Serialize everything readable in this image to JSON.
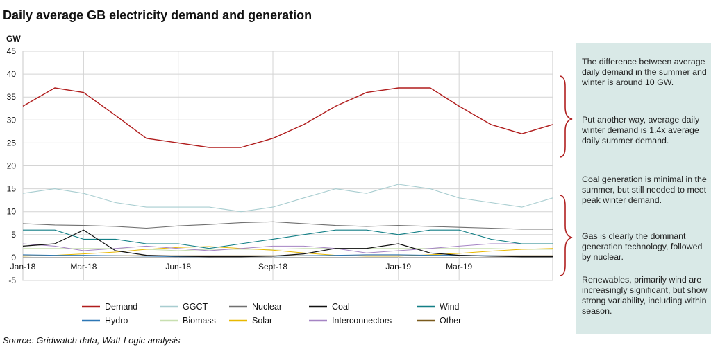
{
  "title": "Daily average GB electricity demand and generation",
  "source": "Source: Gridwatch data, Watt-Logic analysis",
  "annotations": [
    "The difference between average daily demand in the summer and winter is around 10 GW.",
    "Put another way, average daily winter demand is 1.4x average daily summer demand.",
    "Coal generation is minimal in the summer, but still needed to meet peak winter demand.",
    "Gas is clearly the dominant generation technology, followed by nuclear.",
    "Renewables, primarily wind are increasingly significant, but show strong variability, including within season."
  ],
  "colors": {
    "panel": "#d9e9e7",
    "bracket": "#b02020"
  },
  "chart_data": {
    "type": "line",
    "title": "Daily average GB electricity demand and generation",
    "ylabel": "GW",
    "ylim": [
      -5,
      45
    ],
    "yticks": [
      -5,
      0,
      5,
      10,
      15,
      20,
      25,
      30,
      35,
      40,
      45
    ],
    "xlim": [
      "2018-01-01",
      "2019-05-31"
    ],
    "xticks": [
      {
        "label": "Jan-18",
        "date": "2018-01-01"
      },
      {
        "label": "Mar-18",
        "date": "2018-03-01"
      },
      {
        "label": "Jun-18",
        "date": "2018-06-01"
      },
      {
        "label": "Sept-18",
        "date": "2018-09-01"
      },
      {
        "label": "Jan-19",
        "date": "2019-01-01"
      },
      {
        "label": "Mar-19",
        "date": "2019-03-01"
      }
    ],
    "grid": true,
    "legend_position": "bottom",
    "x": [
      "2018-01-01",
      "2018-02-01",
      "2018-03-01",
      "2018-04-01",
      "2018-05-01",
      "2018-06-01",
      "2018-07-01",
      "2018-08-01",
      "2018-09-01",
      "2018-10-01",
      "2018-11-01",
      "2018-12-01",
      "2019-01-01",
      "2019-02-01",
      "2019-03-01",
      "2019-04-01",
      "2019-05-01",
      "2019-05-31"
    ],
    "series": [
      {
        "name": "Demand",
        "color": "#b01c1c",
        "width": 1.4,
        "values": [
          33,
          37,
          36,
          31,
          26,
          25,
          24,
          24,
          26,
          29,
          33,
          36,
          37,
          37,
          33,
          29,
          27,
          29
        ]
      },
      {
        "name": "GGCT",
        "color": "#a8cdd0",
        "width": 1.1,
        "values": [
          14,
          15,
          14,
          12,
          11,
          11,
          11,
          10,
          11,
          13,
          15,
          14,
          16,
          15,
          13,
          12,
          11,
          13
        ]
      },
      {
        "name": "Nuclear",
        "color": "#707070",
        "width": 1.1,
        "values": [
          7.4,
          7.1,
          7.0,
          6.8,
          6.4,
          6.9,
          7.2,
          7.6,
          7.8,
          7.4,
          7.0,
          6.8,
          7.0,
          6.8,
          6.6,
          6.4,
          6.2,
          6.2
        ]
      },
      {
        "name": "Coal",
        "color": "#111111",
        "width": 1.2,
        "values": [
          2.5,
          3.0,
          6.0,
          1.5,
          0.5,
          0.3,
          0.2,
          0.2,
          0.3,
          0.8,
          2.0,
          2.0,
          3.0,
          1.0,
          0.5,
          0.3,
          0.2,
          0.2
        ]
      },
      {
        "name": "Wind",
        "color": "#137f86",
        "width": 1.1,
        "values": [
          6,
          6,
          4,
          4,
          3,
          3,
          2,
          3,
          4,
          5,
          6,
          6,
          5,
          6,
          6,
          4,
          3,
          3
        ]
      },
      {
        "name": "Hydro",
        "color": "#2d77b5",
        "width": 1.0,
        "values": [
          0.6,
          0.5,
          0.5,
          0.4,
          0.3,
          0.2,
          0.2,
          0.3,
          0.3,
          0.4,
          0.5,
          0.6,
          0.6,
          0.5,
          0.5,
          0.4,
          0.3,
          0.3
        ]
      },
      {
        "name": "Biomass",
        "color": "#c8dfb0",
        "width": 1.0,
        "values": [
          2.0,
          2.0,
          2.0,
          2.0,
          1.8,
          1.5,
          1.8,
          1.8,
          1.8,
          2.0,
          2.0,
          2.0,
          2.0,
          2.0,
          2.0,
          2.0,
          1.8,
          1.8
        ]
      },
      {
        "name": "Solar",
        "color": "#e8b800",
        "width": 1.0,
        "values": [
          0.3,
          0.5,
          0.8,
          1.2,
          1.8,
          2.2,
          2.4,
          2.0,
          1.6,
          1.0,
          0.5,
          0.3,
          0.3,
          0.6,
          0.9,
          1.4,
          1.8,
          2.0
        ]
      },
      {
        "name": "Interconnectors",
        "color": "#a584c4",
        "width": 1.0,
        "values": [
          3.0,
          2.5,
          1.5,
          2.0,
          2.5,
          2.0,
          1.5,
          2.0,
          2.5,
          2.5,
          2.0,
          1.0,
          1.5,
          2.0,
          2.5,
          3.0,
          3.0,
          3.0
        ]
      },
      {
        "name": "Other",
        "color": "#7a5a1c",
        "width": 1.0,
        "values": [
          0.4,
          0.4,
          0.4,
          0.4,
          0.4,
          0.4,
          0.4,
          0.4,
          0.4,
          0.4,
          0.4,
          0.4,
          0.4,
          0.4,
          0.4,
          0.4,
          0.4,
          0.4
        ]
      }
    ]
  }
}
